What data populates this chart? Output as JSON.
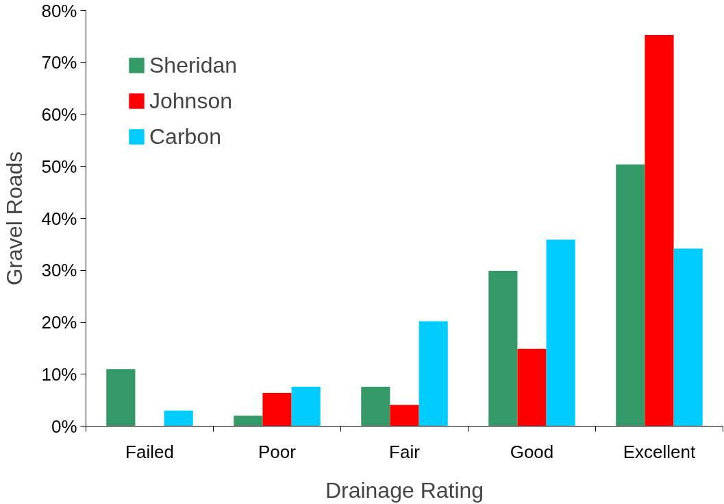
{
  "chart_data": {
    "type": "bar",
    "xlabel": "Drainage Rating",
    "ylabel": "Gravel Roads",
    "categories": [
      "Failed",
      "Poor",
      "Fair",
      "Good",
      "Excellent"
    ],
    "series": [
      {
        "name": "Sheridan",
        "color": "#339966",
        "values": [
          11.0,
          2.0,
          7.6,
          29.9,
          50.4
        ]
      },
      {
        "name": "Johnson",
        "color": "#ff0000",
        "values": [
          0,
          6.4,
          4.1,
          14.9,
          75.3
        ]
      },
      {
        "name": "Carbon",
        "color": "#00ccff",
        "values": [
          3.0,
          7.6,
          20.2,
          35.9,
          34.2
        ]
      }
    ],
    "ylim": [
      0,
      80
    ],
    "yticks": [
      {
        "value": 0,
        "label": "0%"
      },
      {
        "value": 10,
        "label": "10%"
      },
      {
        "value": 20,
        "label": "20%"
      },
      {
        "value": 30,
        "label": "30%"
      },
      {
        "value": 40,
        "label": "40%"
      },
      {
        "value": 50,
        "label": "50%"
      },
      {
        "value": 60,
        "label": "60%"
      },
      {
        "value": 70,
        "label": "70%"
      },
      {
        "value": 80,
        "label": "80%"
      }
    ],
    "grid": false,
    "legend": "top left"
  }
}
